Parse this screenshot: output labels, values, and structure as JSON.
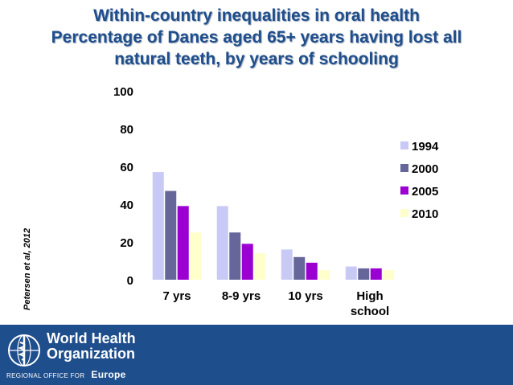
{
  "title_lines": [
    "Within-country inequalities in oral health",
    "Percentage of Danes aged 65+ years having lost all",
    "natural teeth, by years of schooling"
  ],
  "side_credit": "Petersen et al, 2012",
  "footer": {
    "org_line1": "World Health",
    "org_line2": "Organization",
    "region_small": "REGIONAL OFFICE FOR",
    "region_name": "Europe"
  },
  "colors": {
    "title": "#1f4e8c",
    "footer": "#1f4e8c",
    "s1994": "#c9c9f5",
    "s2000": "#66669a",
    "s2005": "#9b00d2",
    "s2010": "#ffffcc"
  },
  "chart_data": {
    "type": "bar",
    "title": "Percentage of Danes aged 65+ years having lost all natural teeth, by years of schooling",
    "categories": [
      "7 yrs",
      "8-9 yrs",
      "10 yrs",
      "High school"
    ],
    "category_lines": [
      [
        "7 yrs"
      ],
      [
        "8-9 yrs"
      ],
      [
        "10 yrs"
      ],
      [
        "High",
        "school"
      ]
    ],
    "series": [
      {
        "name": "1994",
        "values": [
          57,
          39,
          16,
          7
        ]
      },
      {
        "name": "2000",
        "values": [
          47,
          25,
          12,
          6
        ]
      },
      {
        "name": "2005",
        "values": [
          39,
          19,
          9,
          6
        ]
      },
      {
        "name": "2010",
        "values": [
          25,
          14,
          5,
          5
        ]
      }
    ],
    "ylim": [
      0,
      100
    ],
    "yticks": [
      0,
      20,
      40,
      60,
      80,
      100
    ],
    "xlabel": "",
    "ylabel": "",
    "grid": false,
    "legend": "right"
  }
}
